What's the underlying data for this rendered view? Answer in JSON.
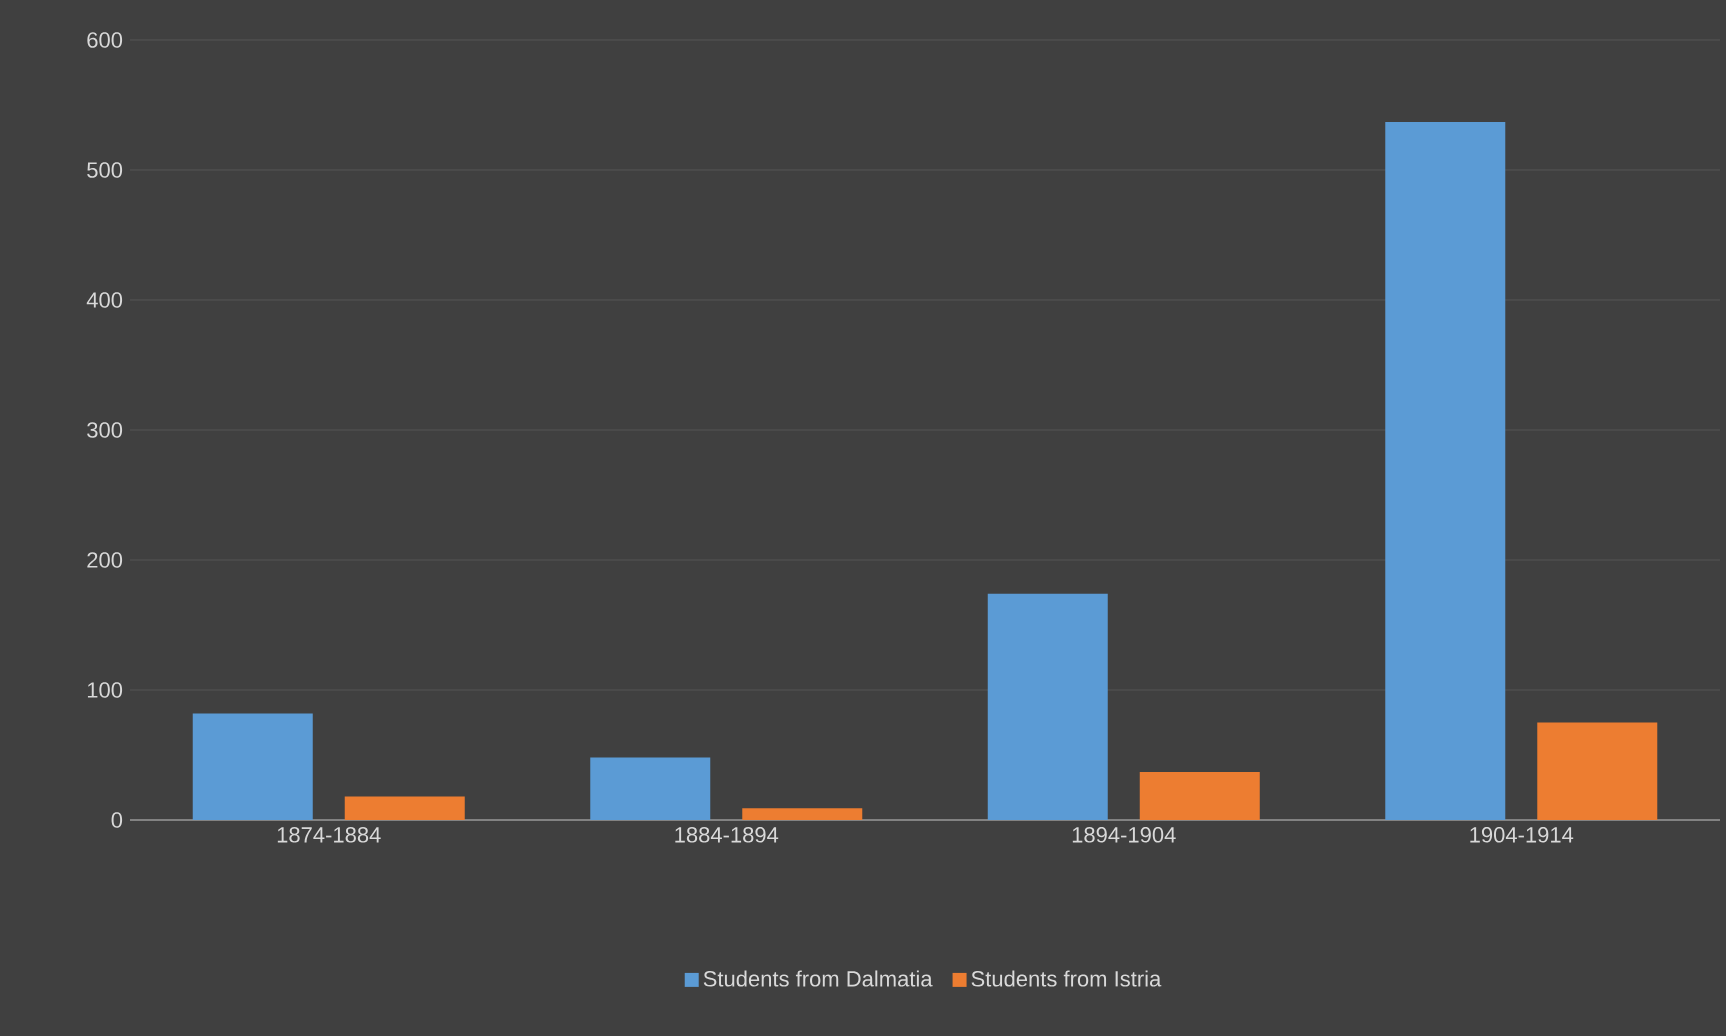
{
  "chart_data": {
    "type": "bar",
    "categories": [
      "1874-1884",
      "1884-1894",
      "1894-1904",
      "1904-1914"
    ],
    "series": [
      {
        "name": "Students from Dalmatia",
        "color": "#5b9bd5",
        "values": [
          82,
          48,
          174,
          537
        ]
      },
      {
        "name": "Students from Istria",
        "color": "#ed7d31",
        "values": [
          18,
          9,
          37,
          75
        ]
      }
    ],
    "ylim": [
      0,
      600
    ],
    "yticks": [
      0,
      100,
      200,
      300,
      400,
      500,
      600
    ],
    "grid": "y",
    "legend": "bottom"
  }
}
